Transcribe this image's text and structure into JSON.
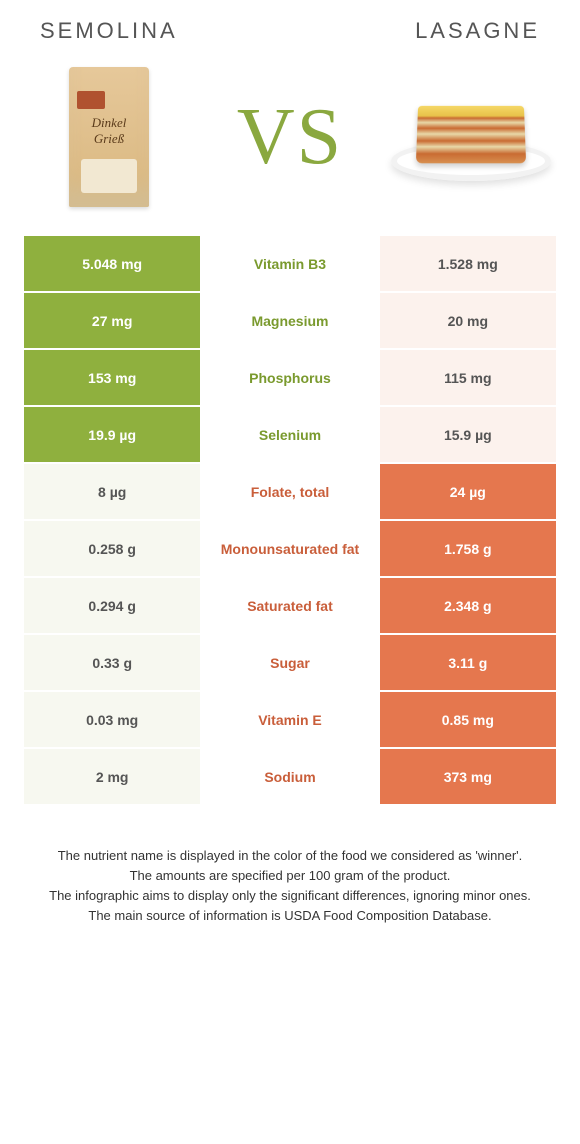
{
  "titles": {
    "left": "SEMOLINA",
    "right": "LASAGNE"
  },
  "vs_label": "VS",
  "colors": {
    "left_winner": "#8fb03e",
    "right_winner": "#e5774e",
    "label_left_winner": "#7a9a2e",
    "label_right_winner": "#c95e3a",
    "neutral_cell_left": "#f7f8f0",
    "neutral_cell_right": "#fcf2ed",
    "neutral_text": "#555555"
  },
  "rows": [
    {
      "label": "Vitamin B3",
      "left": "5.048 mg",
      "right": "1.528 mg",
      "winner": "left"
    },
    {
      "label": "Magnesium",
      "left": "27 mg",
      "right": "20 mg",
      "winner": "left"
    },
    {
      "label": "Phosphorus",
      "left": "153 mg",
      "right": "115 mg",
      "winner": "left"
    },
    {
      "label": "Selenium",
      "left": "19.9 µg",
      "right": "15.9 µg",
      "winner": "left"
    },
    {
      "label": "Folate, total",
      "left": "8 µg",
      "right": "24 µg",
      "winner": "right"
    },
    {
      "label": "Monounsaturated fat",
      "left": "0.258 g",
      "right": "1.758 g",
      "winner": "right"
    },
    {
      "label": "Saturated fat",
      "left": "0.294 g",
      "right": "2.348 g",
      "winner": "right"
    },
    {
      "label": "Sugar",
      "left": "0.33 g",
      "right": "3.11 g",
      "winner": "right"
    },
    {
      "label": "Vitamin E",
      "left": "0.03 mg",
      "right": "0.85 mg",
      "winner": "right"
    },
    {
      "label": "Sodium",
      "left": "2 mg",
      "right": "373 mg",
      "winner": "right"
    }
  ],
  "footer": [
    "The nutrient name is displayed in the color of the food we considered as 'winner'.",
    "The amounts are specified per 100 gram of the product.",
    "The infographic aims to display only the significant differences, ignoring minor ones.",
    "The main source of information is USDA Food Composition Database."
  ]
}
